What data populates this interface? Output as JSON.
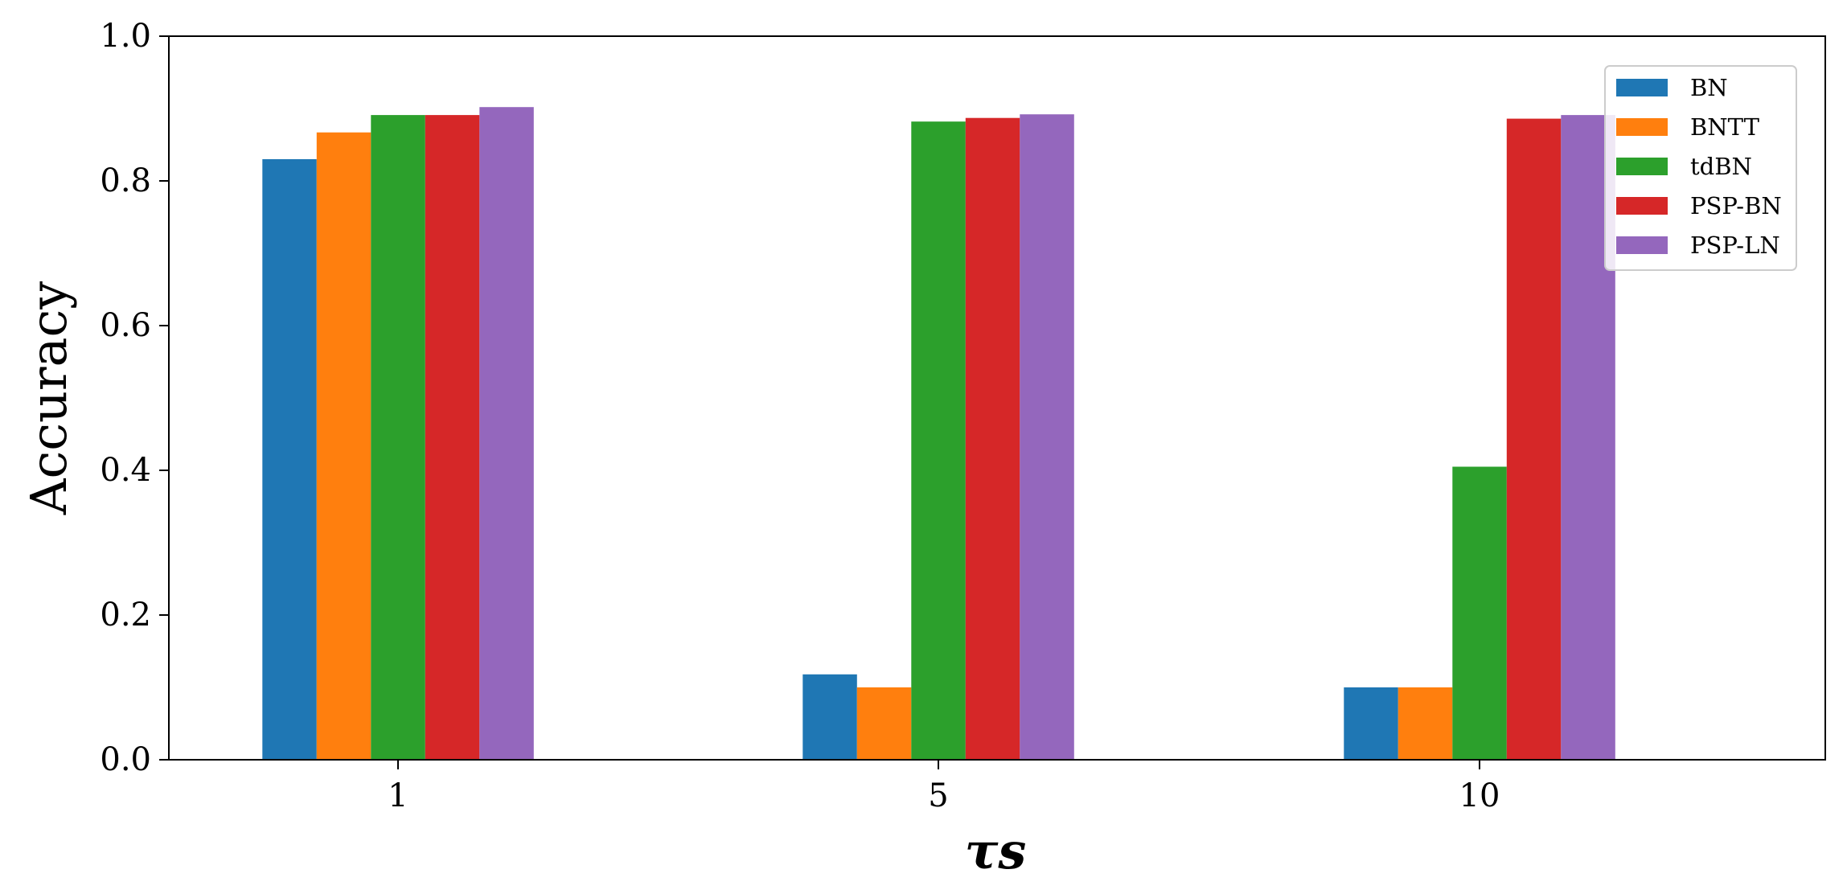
{
  "chart_data": {
    "type": "bar",
    "categories": [
      "1",
      "5",
      "10"
    ],
    "series": [
      {
        "name": "BN",
        "color": "#1f77b4",
        "values": [
          0.83,
          0.118,
          0.1
        ]
      },
      {
        "name": "BNTT",
        "color": "#ff7f0e",
        "values": [
          0.867,
          0.1,
          0.1
        ]
      },
      {
        "name": "tdBN",
        "color": "#2ca02c",
        "values": [
          0.891,
          0.882,
          0.405
        ]
      },
      {
        "name": "PSP-BN",
        "color": "#d62728",
        "values": [
          0.891,
          0.887,
          0.886
        ]
      },
      {
        "name": "PSP-LN",
        "color": "#9467bd",
        "values": [
          0.902,
          0.892,
          0.891
        ]
      }
    ],
    "xlabel": "τs",
    "ylabel": "Accuracy",
    "ylim": [
      0,
      1.0
    ],
    "yticks": [
      "0.0",
      "0.2",
      "0.4",
      "0.6",
      "0.8",
      "1.0"
    ],
    "legend": "top-right",
    "grid": false
  }
}
